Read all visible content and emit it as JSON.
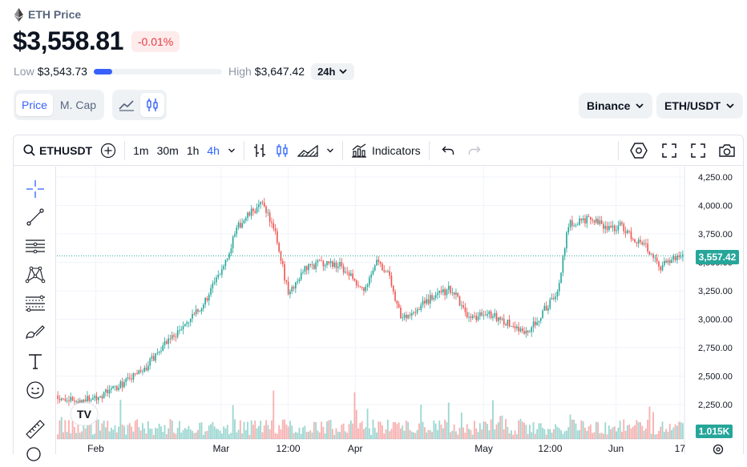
{
  "header": {
    "coin_name": "ETH Price",
    "price": "$3,558.81",
    "change": "-0.01%",
    "low_label": "Low",
    "low_value": "$3,543.73",
    "high_label": "High",
    "high_value": "$3,647.42",
    "range_position": 0.145,
    "period": "24h"
  },
  "controls": {
    "tabs": [
      "Price",
      "M. Cap"
    ],
    "active_tab": "Price",
    "exchange": "Binance",
    "pair": "ETH/USDT"
  },
  "toolbar": {
    "symbol": "ETHUSDT",
    "intervals": [
      "1m",
      "30m",
      "1h",
      "4h"
    ],
    "active_interval": "4h",
    "indicators_label": "Indicators"
  },
  "left_tools": [
    "crosshair-icon",
    "trend-line-icon",
    "horizontal-lines-icon",
    "pattern-icon",
    "fib-icon",
    "brush-icon",
    "text-icon",
    "emoji-icon",
    "ruler-icon"
  ],
  "colors": {
    "up": "#26a69a",
    "down": "#ef5350",
    "accent": "#2962ff",
    "badge": "#ea3943",
    "last_price": "#26a69a"
  },
  "chart_data": {
    "type": "candlestick",
    "symbol": "ETHUSDT",
    "interval": "4h",
    "last_price_label": "3,557.42",
    "volume_label": "1.015K",
    "y_ticks": [
      "4,250.00",
      "4,000.00",
      "3,750.00",
      "3,500.00",
      "3,250.00",
      "3,000.00",
      "2,750.00",
      "2,500.00",
      "2,250.00"
    ],
    "y_tick_values": [
      4250,
      4000,
      3750,
      3500,
      3250,
      3000,
      2750,
      2500,
      2250
    ],
    "x_ticks": [
      "Feb",
      "Mar",
      "12:00",
      "Apr",
      "May",
      "12:00",
      "Jun",
      "17"
    ],
    "x_tick_positions": [
      0.062,
      0.262,
      0.369,
      0.476,
      0.681,
      0.787,
      0.892,
      0.994
    ],
    "grid": true,
    "price_trend": [
      [
        0.0,
        2330
      ],
      [
        0.03,
        2270
      ],
      [
        0.07,
        2330
      ],
      [
        0.1,
        2420
      ],
      [
        0.14,
        2560
      ],
      [
        0.17,
        2780
      ],
      [
        0.2,
        2920
      ],
      [
        0.23,
        3100
      ],
      [
        0.26,
        3400
      ],
      [
        0.29,
        3820
      ],
      [
        0.31,
        3940
      ],
      [
        0.33,
        4020
      ],
      [
        0.35,
        3720
      ],
      [
        0.37,
        3200
      ],
      [
        0.39,
        3420
      ],
      [
        0.42,
        3500
      ],
      [
        0.45,
        3480
      ],
      [
        0.47,
        3380
      ],
      [
        0.49,
        3250
      ],
      [
        0.51,
        3530
      ],
      [
        0.53,
        3380
      ],
      [
        0.55,
        3000
      ],
      [
        0.57,
        3080
      ],
      [
        0.6,
        3200
      ],
      [
        0.63,
        3270
      ],
      [
        0.66,
        3000
      ],
      [
        0.69,
        3050
      ],
      [
        0.72,
        2960
      ],
      [
        0.75,
        2880
      ],
      [
        0.78,
        3100
      ],
      [
        0.8,
        3250
      ],
      [
        0.815,
        3830
      ],
      [
        0.84,
        3880
      ],
      [
        0.86,
        3850
      ],
      [
        0.88,
        3800
      ],
      [
        0.9,
        3820
      ],
      [
        0.92,
        3710
      ],
      [
        0.94,
        3650
      ],
      [
        0.96,
        3450
      ],
      [
        0.98,
        3520
      ],
      [
        1.0,
        3560
      ]
    ]
  }
}
